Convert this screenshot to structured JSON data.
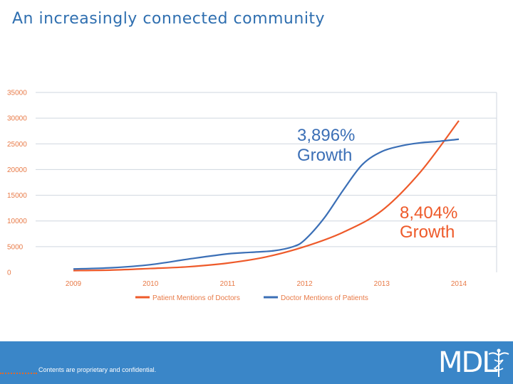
{
  "slide": {
    "title": "An increasingly connected community"
  },
  "chart_data": {
    "type": "line",
    "x": [
      2009,
      2010,
      2011,
      2012,
      2013,
      2014
    ],
    "x_tick_labels": [
      "2009",
      "2010",
      "2011",
      "2012",
      "2013",
      "2014"
    ],
    "y_tick_labels": [
      "0",
      "5000",
      "10000",
      "15000",
      "20000",
      "25000",
      "30000",
      "35000"
    ],
    "ylim": [
      0,
      35000
    ],
    "grid": true,
    "legend_position": "bottom",
    "series": [
      {
        "name": "Patient Mentions of Doctors",
        "color": "#ee5a2a",
        "points": [
          [
            2009,
            350
          ],
          [
            2009.5,
            450
          ],
          [
            2010,
            750
          ],
          [
            2010.5,
            1100
          ],
          [
            2011,
            1800
          ],
          [
            2011.5,
            3000
          ],
          [
            2012,
            5000
          ],
          [
            2012.5,
            7800
          ],
          [
            2013,
            12000
          ],
          [
            2013.5,
            19500
          ],
          [
            2014,
            29500
          ]
        ]
      },
      {
        "name": "Doctor Mentions of Patients",
        "color": "#3b6fb6",
        "points": [
          [
            2009,
            650
          ],
          [
            2009.5,
            900
          ],
          [
            2010,
            1500
          ],
          [
            2010.5,
            2600
          ],
          [
            2011,
            3600
          ],
          [
            2011.3,
            3900
          ],
          [
            2011.6,
            4200
          ],
          [
            2011.85,
            5000
          ],
          [
            2012,
            6300
          ],
          [
            2012.25,
            10500
          ],
          [
            2012.5,
            16000
          ],
          [
            2012.75,
            21000
          ],
          [
            2013,
            23500
          ],
          [
            2013.25,
            24600
          ],
          [
            2013.5,
            25200
          ],
          [
            2013.75,
            25500
          ],
          [
            2014,
            25900
          ]
        ]
      }
    ],
    "annotations": [
      {
        "line1": "3,896%",
        "line2": "Growth",
        "color": "#3b6fb6"
      },
      {
        "line1": "8,404%",
        "line2": "Growth",
        "color": "#ee5a2a"
      }
    ]
  },
  "footer": {
    "text": "Contents are proprietary and confidential.",
    "logo": "MDL",
    "logo_icon": "caduceus-icon"
  }
}
